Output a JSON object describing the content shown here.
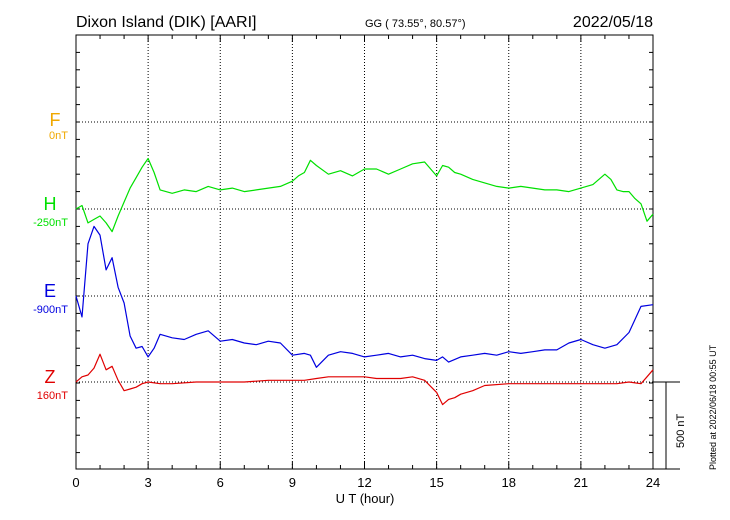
{
  "header": {
    "station": "Dixon Island (DIK)  [AARI]",
    "coords": "GG ( 73.55°,  80.57°)",
    "date": "2022/05/18"
  },
  "plotted_note": "Plotted at 2022/06/18 00:55 UT",
  "scale_label": "500 nT",
  "colors": {
    "F": "#f0a800",
    "H": "#00e000",
    "E": "#0000e0",
    "Z": "#e00000",
    "frame": "#000000",
    "grid": "#000000"
  },
  "chart_data": {
    "type": "line",
    "xlabel": "U T (hour)",
    "xlim": [
      0,
      24
    ],
    "x_ticks": [
      "0",
      "3",
      "6",
      "9",
      "12",
      "15",
      "18",
      "21",
      "24"
    ],
    "y_unit": "nT",
    "scale_bar_nT": 500,
    "grid": true,
    "series": [
      {
        "name": "F",
        "baseline_label": "0nT",
        "x": [],
        "y": []
      },
      {
        "name": "H",
        "baseline_label": "-250nT",
        "x": [
          0,
          0.25,
          0.5,
          0.75,
          1.0,
          1.25,
          1.5,
          1.75,
          2.0,
          2.25,
          2.5,
          2.75,
          3.0,
          3.25,
          3.5,
          4.0,
          4.5,
          5.0,
          5.5,
          6.0,
          6.5,
          7.0,
          7.5,
          8.0,
          8.5,
          9.0,
          9.25,
          9.5,
          9.75,
          10.0,
          10.5,
          11.0,
          11.5,
          12.0,
          12.5,
          13.0,
          13.5,
          14.0,
          14.5,
          15.0,
          15.25,
          15.5,
          15.75,
          16.0,
          16.5,
          17.0,
          17.5,
          18.0,
          18.5,
          19.0,
          19.5,
          20.0,
          20.5,
          21.0,
          21.5,
          22.0,
          22.25,
          22.5,
          22.75,
          23.0,
          23.25,
          23.5,
          23.75,
          24.0
        ],
        "y": [
          -250,
          -230,
          -330,
          -310,
          -290,
          -330,
          -380,
          -290,
          -210,
          -130,
          -70,
          -10,
          40,
          -40,
          -140,
          -160,
          -140,
          -150,
          -120,
          -140,
          -130,
          -150,
          -140,
          -130,
          -120,
          -90,
          -60,
          -40,
          30,
          0,
          -50,
          -30,
          -60,
          -20,
          -20,
          -50,
          -20,
          10,
          20,
          -60,
          0,
          -10,
          -40,
          -50,
          -80,
          -100,
          -120,
          -130,
          -120,
          -130,
          -140,
          -140,
          -150,
          -130,
          -110,
          -50,
          -80,
          -140,
          -150,
          -150,
          -190,
          -220,
          -320,
          -280
        ]
      },
      {
        "name": "E",
        "baseline_label": "-900nT",
        "x": [
          0,
          0.25,
          0.5,
          0.75,
          1.0,
          1.25,
          1.5,
          1.75,
          2.0,
          2.25,
          2.5,
          2.75,
          3.0,
          3.25,
          3.5,
          4.0,
          4.5,
          5.0,
          5.5,
          6.0,
          6.5,
          7.0,
          7.5,
          8.0,
          8.5,
          9.0,
          9.5,
          9.75,
          10.0,
          10.5,
          11.0,
          11.5,
          12.0,
          12.5,
          13.0,
          13.5,
          14.0,
          14.5,
          15.0,
          15.25,
          15.5,
          16.0,
          16.5,
          17.0,
          17.5,
          18.0,
          18.5,
          19.0,
          19.5,
          20.0,
          20.5,
          21.0,
          21.5,
          22.0,
          22.5,
          23.0,
          23.5,
          24.0
        ],
        "y": [
          -600,
          -720,
          -300,
          -200,
          -250,
          -450,
          -380,
          -550,
          -640,
          -830,
          -900,
          -890,
          -950,
          -900,
          -820,
          -840,
          -850,
          -820,
          -800,
          -860,
          -850,
          -870,
          -880,
          -860,
          -870,
          -940,
          -930,
          -940,
          -1010,
          -940,
          -920,
          -930,
          -950,
          -940,
          -930,
          -950,
          -940,
          -960,
          -970,
          -950,
          -980,
          -950,
          -940,
          -930,
          -940,
          -920,
          -930,
          -920,
          -910,
          -910,
          -870,
          -850,
          -880,
          -900,
          -880,
          -810,
          -660,
          -650
        ]
      },
      {
        "name": "Z",
        "baseline_label": "160nT",
        "x": [
          0,
          0.25,
          0.5,
          0.75,
          1.0,
          1.25,
          1.5,
          1.75,
          2.0,
          2.25,
          2.5,
          2.75,
          3.0,
          3.5,
          4.0,
          5.0,
          6.0,
          7.0,
          8.0,
          9.0,
          9.5,
          10.0,
          10.5,
          11.0,
          11.5,
          12.0,
          12.5,
          13.0,
          13.5,
          14.0,
          14.5,
          15.0,
          15.25,
          15.5,
          15.75,
          16.0,
          16.5,
          17.0,
          18.0,
          19.0,
          20.0,
          21.0,
          21.5,
          22.0,
          22.5,
          23.0,
          23.5,
          23.75,
          24.0
        ],
        "y": [
          160,
          190,
          200,
          240,
          320,
          230,
          250,
          170,
          110,
          120,
          130,
          150,
          160,
          150,
          150,
          160,
          160,
          160,
          170,
          170,
          170,
          180,
          190,
          190,
          190,
          190,
          180,
          180,
          180,
          190,
          170,
          100,
          30,
          60,
          70,
          90,
          110,
          140,
          150,
          150,
          150,
          150,
          150,
          150,
          150,
          160,
          150,
          190,
          230
        ]
      }
    ]
  }
}
